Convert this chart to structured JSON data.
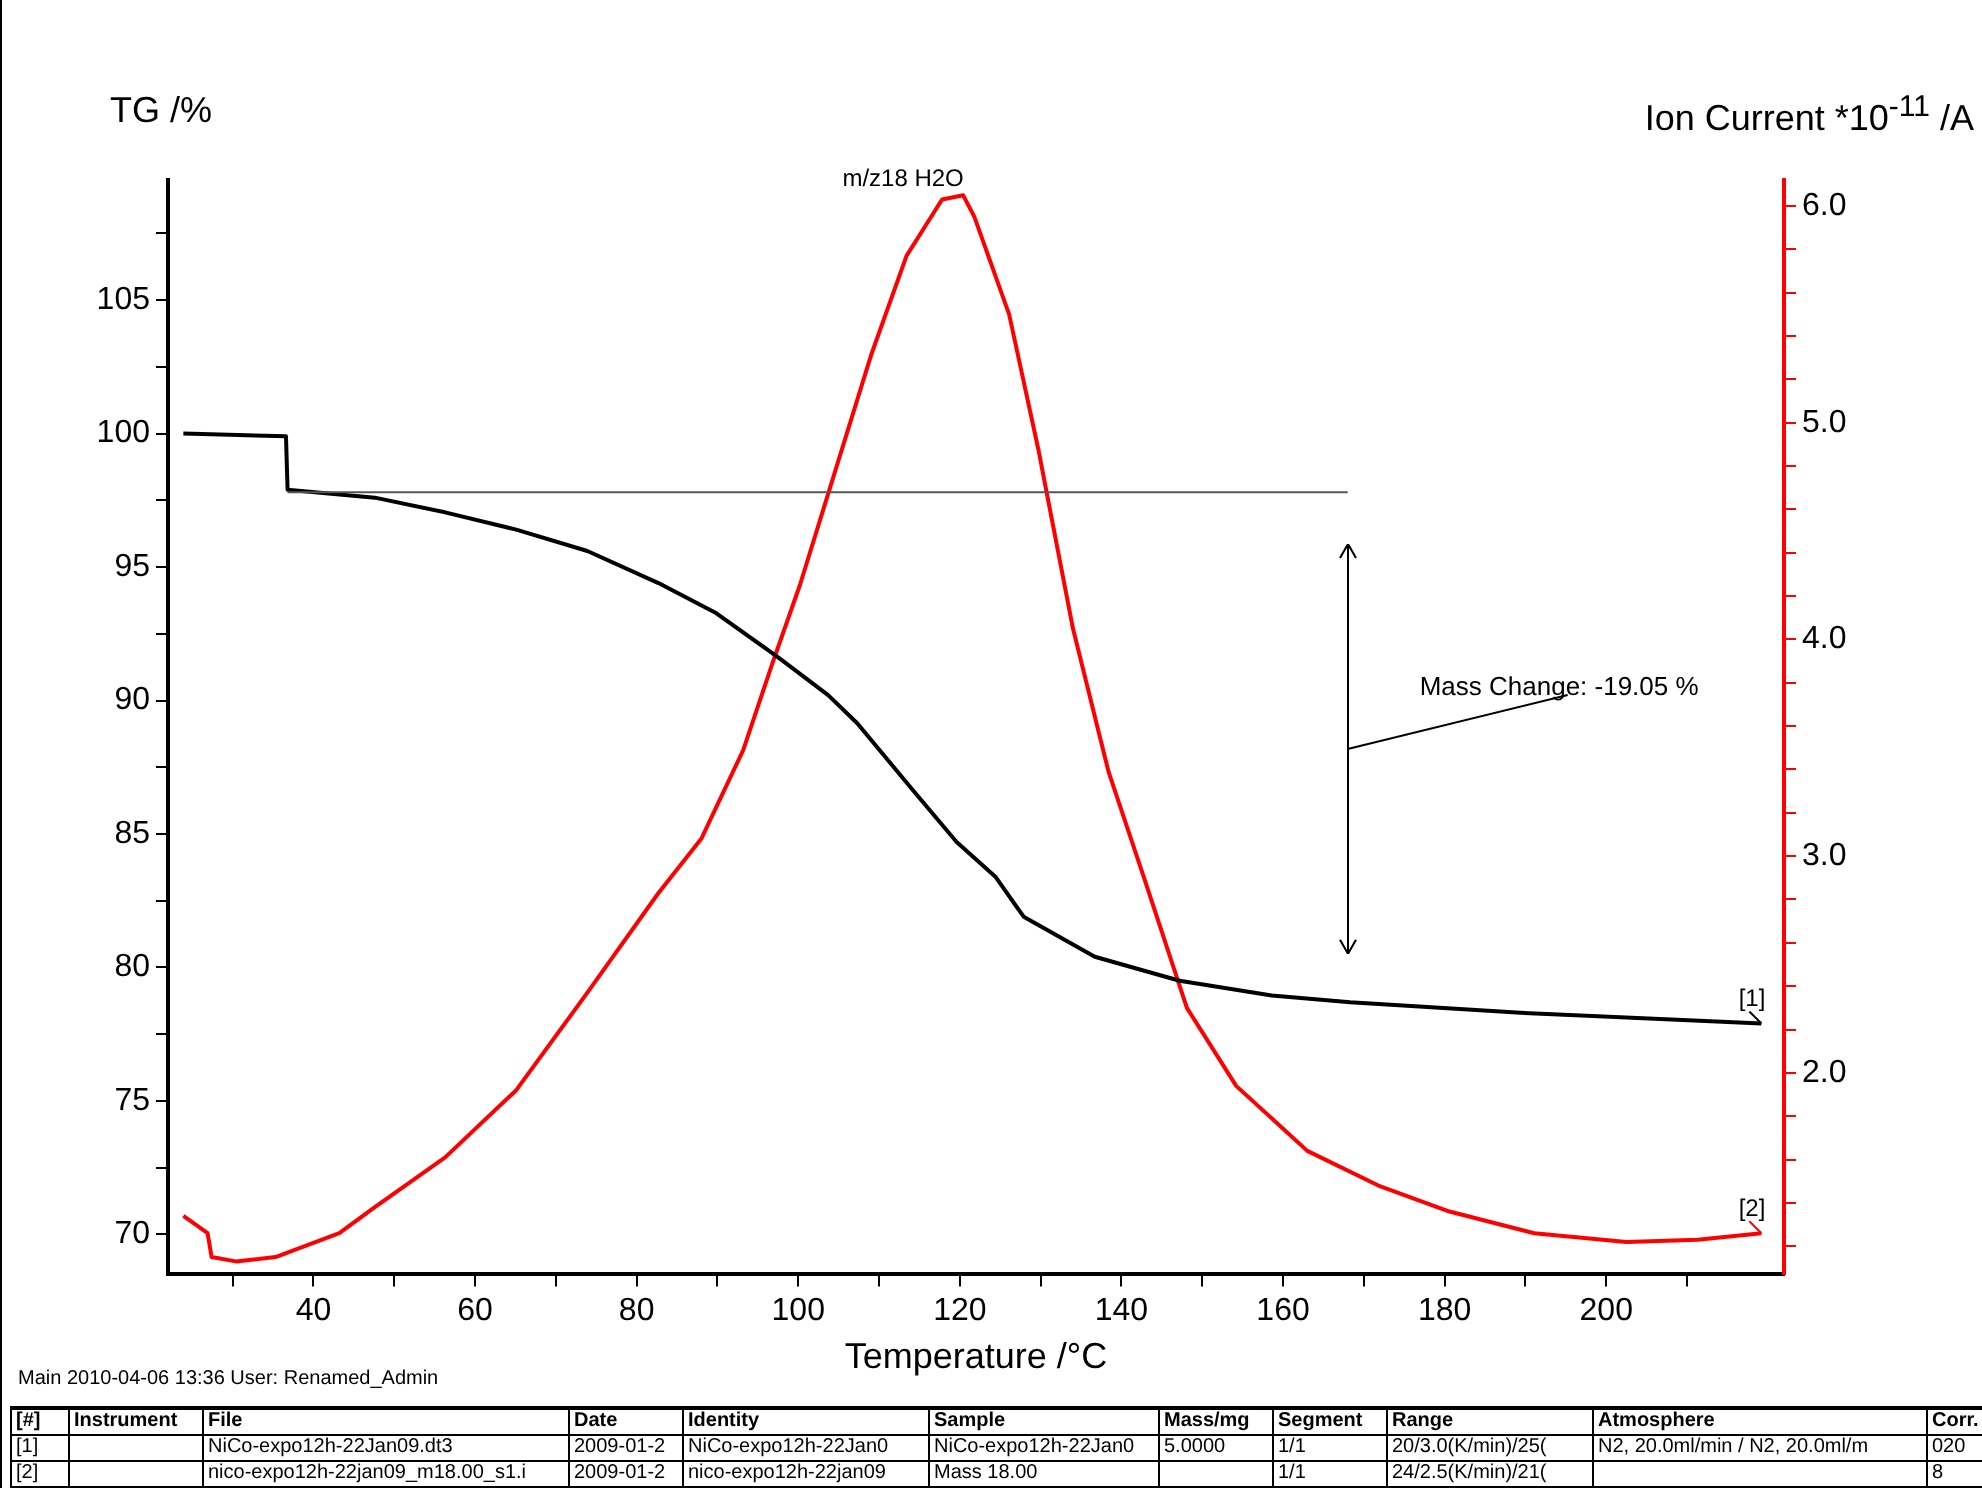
{
  "chart_data": {
    "type": "line",
    "xlabel": "Temperature /°C",
    "ylabel": "TG /%",
    "y2label": "Ion Current *10$^{-11}$ /A",
    "xlim": [
      22,
      222
    ],
    "ylim": [
      68.5,
      109.5
    ],
    "y2lim": [
      1.07,
      6.12
    ],
    "xticks": [
      {
        "value": 30,
        "label": null
      },
      40,
      {
        "value": 50,
        "label": null
      },
      60,
      {
        "value": 70,
        "label": null
      },
      80,
      {
        "value": 90,
        "label": null
      },
      100,
      {
        "value": 110,
        "label": null
      },
      120,
      {
        "value": 130,
        "label": null
      },
      140,
      {
        "value": 150,
        "label": null
      },
      160,
      {
        "value": 170,
        "label": null
      },
      180,
      {
        "value": 190,
        "label": null
      },
      200,
      {
        "value": 210,
        "label": null
      }
    ],
    "yticks": [
      70,
      {
        "value": 72.5,
        "label": null
      },
      75,
      {
        "value": 77.5,
        "label": null
      },
      80,
      {
        "value": 82.5,
        "label": null
      },
      85,
      {
        "value": 87.5,
        "label": null
      },
      90,
      {
        "value": 92.5,
        "label": null
      },
      95,
      {
        "value": 97.5,
        "label": null
      },
      100,
      {
        "value": 102.5,
        "label": null
      },
      105,
      {
        "value": 107.5,
        "label": null
      }
    ],
    "y2ticks": [
      {
        "value": 1.2,
        "label": null
      },
      {
        "value": 1.4,
        "label": null
      },
      {
        "value": 1.6,
        "label": null
      },
      {
        "value": 1.8,
        "label": null
      },
      {
        "value": 2,
        "label": "2.0"
      },
      {
        "value": 2.2,
        "label": null
      },
      {
        "value": 2.4,
        "label": null
      },
      {
        "value": 2.6,
        "label": null
      },
      {
        "value": 2.8,
        "label": null
      },
      {
        "value": 3,
        "label": "3.0"
      },
      {
        "value": 3.2,
        "label": null
      },
      {
        "value": 3.4,
        "label": null
      },
      {
        "value": 3.6,
        "label": null
      },
      {
        "value": 3.8,
        "label": null
      },
      {
        "value": 4,
        "label": "4.0"
      },
      {
        "value": 4.2,
        "label": null
      },
      {
        "value": 4.4,
        "label": null
      },
      {
        "value": 4.6,
        "label": null
      },
      {
        "value": 4.8,
        "label": null
      },
      {
        "value": 5,
        "label": "5.0"
      },
      {
        "value": 5.2,
        "label": null
      },
      {
        "value": 5.4,
        "label": null
      },
      {
        "value": 5.6,
        "label": null
      },
      {
        "value": 5.8,
        "label": null
      },
      {
        "value": 6,
        "label": "6.0"
      }
    ],
    "series": [
      {
        "name": "[1]",
        "color": "#000000",
        "x": [
          23.9,
          36.6,
          36.8,
          47.6,
          56.3,
          65.1,
          73.9,
          82.7,
          89.7,
          97.6,
          103.7,
          107.3,
          114.3,
          119.6,
          124.4,
          127.9,
          136.7,
          147.2,
          158.6,
          168.3,
          189.4,
          219.2
        ],
        "values": [
          100,
          99.9,
          97.9,
          97.6,
          97.05,
          96.4,
          95.6,
          94.4,
          93.3,
          91.6,
          90.2,
          89.15,
          86.6,
          84.7,
          83.4,
          81.9,
          80.4,
          79.5,
          78.95,
          78.7,
          78.3,
          77.9
        ]
      },
      {
        "name": "[2]",
        "color": "#ff0000",
        "axis": "y2",
        "x": [
          23.9,
          26.9,
          27.4,
          30.4,
          35.3,
          43.2,
          47.6,
          56.3,
          65.1,
          73.9,
          82.7,
          88,
          93.2,
          96.8,
          100.2,
          104.6,
          109,
          113.4,
          117.8,
          120.4,
          121.8,
          126.1,
          129.7,
          134,
          138.4,
          142.8,
          148.1,
          154.2,
          163,
          171.8,
          180.6,
          191.1,
          202.5,
          211.3,
          219.2
        ],
        "values": [
          1.34,
          1.26,
          1.15,
          1.13,
          1.15,
          1.26,
          1.38,
          1.61,
          1.92,
          2.37,
          2.83,
          3.08,
          3.49,
          3.89,
          4.25,
          4.78,
          5.31,
          5.77,
          6.03,
          6.05,
          5.95,
          5.5,
          4.88,
          4.05,
          3.39,
          2.9,
          2.3,
          1.94,
          1.64,
          1.48,
          1.36,
          1.26,
          1.22,
          1.23,
          1.26
        ]
      }
    ],
    "ref_lines": [
      {
        "axis": "y",
        "value": 97.8,
        "color": "#555555"
      }
    ],
    "annotations": [
      "m/z18 H2O",
      "Mass Change: -19.05 %",
      "Main  2010-04-06 13:36  User: Renamed_Admin",
      "[#]\tInstrument\tFile\tDate\tIdentity\tSample\tMass/mg\tSegment\tRange\tAtmosphere\tCorr.",
      "[1]\t\tNiCo-expo12h-22Jan09.dt3\t2009-01-2\tNiCo-expo12h-22Jan0\tNiCo-expo12h-22Jan0\t5.0000\t1/1\t20/3.0(K/min)/25(\tN2, 20.0ml/min / N2, 20.0ml/m\t020",
      "[2]\t\tnico-expo12h-22jan09_m18.00_s1.i\t2009-01-2\tnico-expo12h-22jan09\tMass 18.00\t\t1/1\t24/2.5(K/min)/21(\t\t8"
    ],
    "grid": false,
    "legend": false,
    "marker": "none",
    "line_style": "solid"
  }
}
